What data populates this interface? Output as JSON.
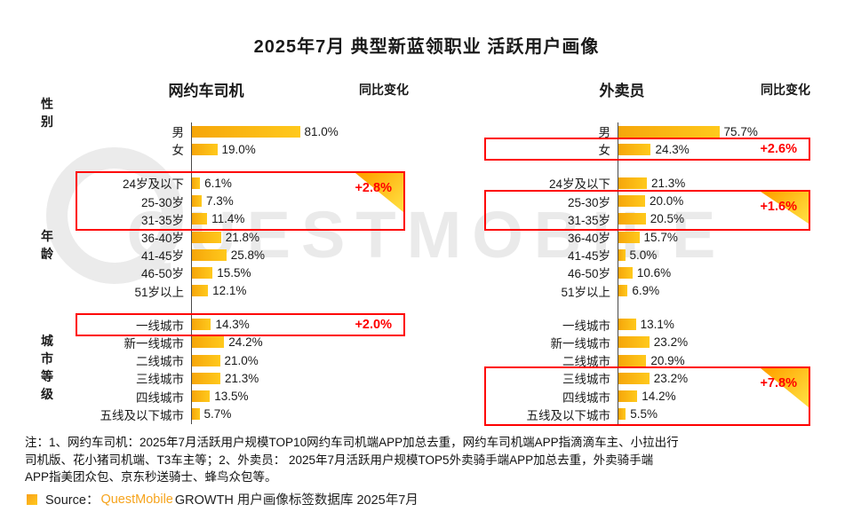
{
  "title": "2025年7月 典型新蓝领职业 活跃用户画像",
  "watermark": {
    "text": "QUESTMOBILE"
  },
  "chart_data": [
    {
      "type": "bar",
      "name": "网约车司机",
      "change_header": "同比变化",
      "unit": "%",
      "xlim": [
        0,
        100
      ],
      "groups": [
        {
          "label": "性别",
          "rows": [
            {
              "label": "男",
              "value": 81.0
            },
            {
              "label": "女",
              "value": 19.0
            }
          ]
        },
        {
          "label": "年龄",
          "rows": [
            {
              "label": "24岁及以下",
              "value": 6.1
            },
            {
              "label": "25-30岁",
              "value": 7.3
            },
            {
              "label": "31-35岁",
              "value": 11.4
            },
            {
              "label": "36-40岁",
              "value": 21.8
            },
            {
              "label": "41-45岁",
              "value": 25.8
            },
            {
              "label": "46-50岁",
              "value": 15.5
            },
            {
              "label": "51岁以上",
              "value": 12.1
            }
          ]
        },
        {
          "label": "城市等级",
          "rows": [
            {
              "label": "一线城市",
              "value": 14.3
            },
            {
              "label": "新一线城市",
              "value": 24.2
            },
            {
              "label": "二线城市",
              "value": 21.0
            },
            {
              "label": "三线城市",
              "value": 21.3
            },
            {
              "label": "四线城市",
              "value": 13.5
            },
            {
              "label": "五线及以下城市",
              "value": 5.7
            }
          ]
        }
      ],
      "highlights": [
        {
          "from": "24岁及以下",
          "to": "31-35岁",
          "change": "+2.8%",
          "triangle": true
        },
        {
          "from": "一线城市",
          "to": "一线城市",
          "change": "+2.0%",
          "triangle": false
        }
      ]
    },
    {
      "type": "bar",
      "name": "外卖员",
      "change_header": "同比变化",
      "unit": "%",
      "xlim": [
        0,
        100
      ],
      "groups": [
        {
          "label": "性别",
          "rows": [
            {
              "label": "男",
              "value": 75.7
            },
            {
              "label": "女",
              "value": 24.3
            }
          ]
        },
        {
          "label": "年龄",
          "rows": [
            {
              "label": "24岁及以下",
              "value": 21.3
            },
            {
              "label": "25-30岁",
              "value": 20.0
            },
            {
              "label": "31-35岁",
              "value": 20.5
            },
            {
              "label": "36-40岁",
              "value": 15.7
            },
            {
              "label": "41-45岁",
              "value": 5.0
            },
            {
              "label": "46-50岁",
              "value": 10.6
            },
            {
              "label": "51岁以上",
              "value": 6.9
            }
          ]
        },
        {
          "label": "城市等级",
          "rows": [
            {
              "label": "一线城市",
              "value": 13.1
            },
            {
              "label": "新一线城市",
              "value": 23.2
            },
            {
              "label": "二线城市",
              "value": 20.9
            },
            {
              "label": "三线城市",
              "value": 23.2
            },
            {
              "label": "四线城市",
              "value": 14.2
            },
            {
              "label": "五线及以下城市",
              "value": 5.5
            }
          ]
        }
      ],
      "highlights": [
        {
          "from": "女",
          "to": "女",
          "change": "+2.6%",
          "triangle": false
        },
        {
          "from": "25-30岁",
          "to": "31-35岁",
          "change": "+1.6%",
          "triangle": true
        },
        {
          "from": "三线城市",
          "to": "五线及以下城市",
          "change": "+7.8%",
          "triangle": true
        }
      ]
    }
  ],
  "notes": [
    "注：1、网约车司机：2025年7月活跃用户规模TOP10网约车司机端APP加总去重，网约车司机端APP指滴滴车主、小拉出行",
    "司机版、花小猪司机端、T3车主等；2、外卖员： 2025年7月活跃用户规模TOP5外卖骑手端APP加总去重，外卖骑手端",
    "APP指美团众包、京东秒送骑士、蜂鸟众包等。"
  ],
  "source": {
    "prefix": "Source：",
    "brand": "QuestMobile",
    "rest": " GROWTH 用户画像标签数据库 2025年7月"
  }
}
